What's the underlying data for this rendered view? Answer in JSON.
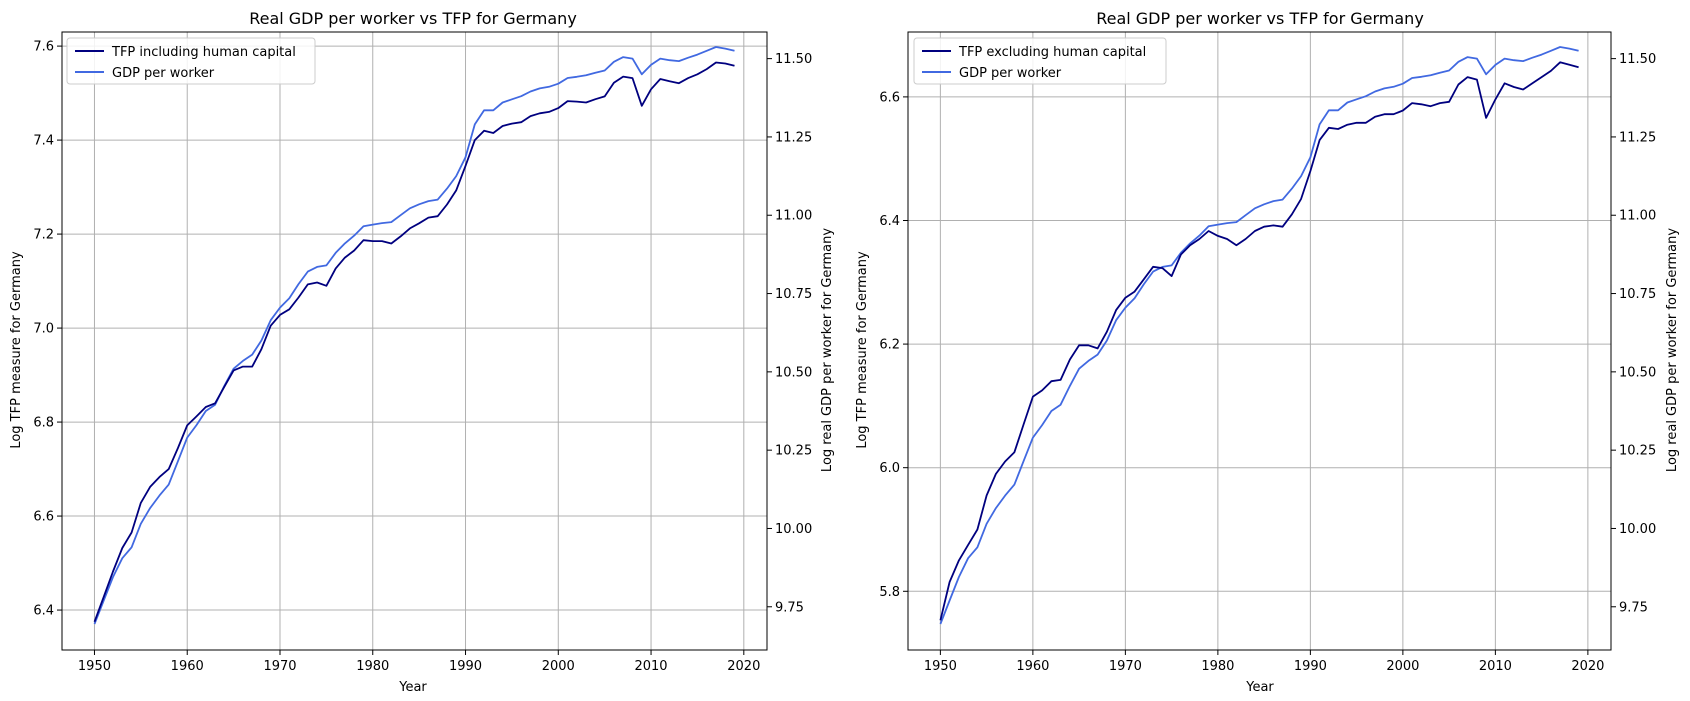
{
  "chart_data": [
    {
      "type": "line",
      "title": "Real GDP per worker vs TFP for Germany",
      "xlabel": "Year",
      "ylabel_left": "Log TFP measure for Germany",
      "ylabel_right": "Log real GDP per worker for Germany",
      "xlim": [
        1946.5,
        2022.5
      ],
      "ylim_left": [
        6.315,
        7.63
      ],
      "ylim_right": [
        9.612,
        11.585
      ],
      "x_ticks": [
        1950,
        1960,
        1970,
        1980,
        1990,
        2000,
        2010,
        2020
      ],
      "y_ticks_left": [
        6.4,
        6.6,
        6.8,
        7.0,
        7.2,
        7.4,
        7.6
      ],
      "y_ticks_right": [
        9.75,
        10.0,
        10.25,
        10.5,
        10.75,
        11.0,
        11.25,
        11.5
      ],
      "y_tick_labels_left": [
        "6.4",
        "6.6",
        "6.8",
        "7.0",
        "7.2",
        "7.4",
        "7.6"
      ],
      "y_tick_labels_right": [
        "9.75",
        "10.00",
        "10.25",
        "10.50",
        "10.75",
        "11.00",
        "11.25",
        "11.50"
      ],
      "grid": true,
      "legend_position": "top-left",
      "x": [
        1950,
        1951,
        1952,
        1953,
        1954,
        1955,
        1956,
        1957,
        1958,
        1959,
        1960,
        1961,
        1962,
        1963,
        1964,
        1965,
        1966,
        1967,
        1968,
        1969,
        1970,
        1971,
        1972,
        1973,
        1974,
        1975,
        1976,
        1977,
        1978,
        1979,
        1980,
        1981,
        1982,
        1983,
        1984,
        1985,
        1986,
        1987,
        1988,
        1989,
        1990,
        1991,
        1992,
        1993,
        1994,
        1995,
        1996,
        1997,
        1998,
        1999,
        2000,
        2001,
        2002,
        2003,
        2004,
        2005,
        2006,
        2007,
        2008,
        2009,
        2010,
        2011,
        2012,
        2013,
        2014,
        2015,
        2016,
        2017,
        2018,
        2019
      ],
      "series": [
        {
          "name": "TFP including human capital",
          "axis": "left",
          "color": "#00007f",
          "values": [
            6.375,
            6.428,
            6.482,
            6.532,
            6.565,
            6.628,
            6.662,
            6.683,
            6.7,
            6.745,
            6.793,
            6.812,
            6.832,
            6.84,
            6.875,
            6.91,
            6.918,
            6.918,
            6.955,
            7.005,
            7.028,
            7.04,
            7.065,
            7.093,
            7.097,
            7.09,
            7.127,
            7.15,
            7.165,
            7.187,
            7.185,
            7.185,
            7.18,
            7.195,
            7.212,
            7.223,
            7.235,
            7.238,
            7.263,
            7.293,
            7.345,
            7.4,
            7.42,
            7.415,
            7.43,
            7.435,
            7.438,
            7.451,
            7.457,
            7.46,
            7.468,
            7.483,
            7.482,
            7.48,
            7.487,
            7.493,
            7.522,
            7.535,
            7.532,
            7.473,
            7.508,
            7.53,
            7.525,
            7.521,
            7.532,
            7.54,
            7.551,
            7.565,
            7.563,
            7.558
          ]
        },
        {
          "name": "GDP per worker",
          "axis": "right",
          "color": "#4169e1",
          "values": [
            9.695,
            9.77,
            9.845,
            9.905,
            9.94,
            10.015,
            10.065,
            10.105,
            10.14,
            10.215,
            10.29,
            10.33,
            10.375,
            10.395,
            10.455,
            10.51,
            10.535,
            10.555,
            10.6,
            10.665,
            10.705,
            10.735,
            10.78,
            10.82,
            10.835,
            10.84,
            10.88,
            10.91,
            10.935,
            10.965,
            10.97,
            10.975,
            10.978,
            11.0,
            11.022,
            11.035,
            11.045,
            11.05,
            11.085,
            11.125,
            11.185,
            11.29,
            11.335,
            11.335,
            11.36,
            11.37,
            11.38,
            11.395,
            11.405,
            11.41,
            11.42,
            11.438,
            11.442,
            11.447,
            11.455,
            11.462,
            11.49,
            11.505,
            11.5,
            11.45,
            11.48,
            11.5,
            11.495,
            11.492,
            11.503,
            11.513,
            11.525,
            11.537,
            11.532,
            11.525
          ]
        }
      ]
    },
    {
      "type": "line",
      "title": "Real GDP per worker vs TFP for Germany",
      "xlabel": "Year",
      "ylabel_left": "Log TFP measure for Germany",
      "ylabel_right": "Log real GDP per worker for Germany",
      "xlim": [
        1946.5,
        2022.5
      ],
      "ylim_left": [
        5.705,
        6.705
      ],
      "ylim_right": [
        9.612,
        11.585
      ],
      "x_ticks": [
        1950,
        1960,
        1970,
        1980,
        1990,
        2000,
        2010,
        2020
      ],
      "y_ticks_left": [
        5.8,
        6.0,
        6.2,
        6.4,
        6.6
      ],
      "y_ticks_right": [
        9.75,
        10.0,
        10.25,
        10.5,
        10.75,
        11.0,
        11.25,
        11.5
      ],
      "y_tick_labels_left": [
        "5.8",
        "6.0",
        "6.2",
        "6.4",
        "6.6"
      ],
      "y_tick_labels_right": [
        "9.75",
        "10.00",
        "10.25",
        "10.50",
        "10.75",
        "11.00",
        "11.25",
        "11.50"
      ],
      "grid": true,
      "legend_position": "top-left",
      "x": [
        1950,
        1951,
        1952,
        1953,
        1954,
        1955,
        1956,
        1957,
        1958,
        1959,
        1960,
        1961,
        1962,
        1963,
        1964,
        1965,
        1966,
        1967,
        1968,
        1969,
        1970,
        1971,
        1972,
        1973,
        1974,
        1975,
        1976,
        1977,
        1978,
        1979,
        1980,
        1981,
        1982,
        1983,
        1984,
        1985,
        1986,
        1987,
        1988,
        1989,
        1990,
        1991,
        1992,
        1993,
        1994,
        1995,
        1996,
        1997,
        1998,
        1999,
        2000,
        2001,
        2002,
        2003,
        2004,
        2005,
        2006,
        2007,
        2008,
        2009,
        2010,
        2011,
        2012,
        2013,
        2014,
        2015,
        2016,
        2017,
        2018,
        2019
      ],
      "series": [
        {
          "name": "TFP excluding human capital",
          "axis": "left",
          "color": "#00007f",
          "values": [
            5.753,
            5.815,
            5.85,
            5.875,
            5.9,
            5.955,
            5.99,
            6.01,
            6.025,
            6.07,
            6.115,
            6.125,
            6.14,
            6.142,
            6.175,
            6.198,
            6.198,
            6.193,
            6.22,
            6.255,
            6.275,
            6.285,
            6.305,
            6.325,
            6.323,
            6.31,
            6.345,
            6.36,
            6.37,
            6.383,
            6.375,
            6.37,
            6.36,
            6.37,
            6.383,
            6.39,
            6.392,
            6.39,
            6.41,
            6.435,
            6.48,
            6.53,
            6.55,
            6.548,
            6.555,
            6.558,
            6.558,
            6.568,
            6.572,
            6.572,
            6.578,
            6.59,
            6.588,
            6.585,
            6.59,
            6.592,
            6.62,
            6.632,
            6.628,
            6.566,
            6.596,
            6.622,
            6.616,
            6.612,
            6.622,
            6.632,
            6.642,
            6.656,
            6.652,
            6.648
          ]
        },
        {
          "name": "GDP per worker",
          "axis": "right",
          "color": "#4169e1",
          "values": [
            9.695,
            9.77,
            9.845,
            9.905,
            9.94,
            10.015,
            10.065,
            10.105,
            10.14,
            10.215,
            10.29,
            10.33,
            10.375,
            10.395,
            10.455,
            10.51,
            10.535,
            10.555,
            10.6,
            10.665,
            10.705,
            10.735,
            10.78,
            10.82,
            10.835,
            10.84,
            10.88,
            10.91,
            10.935,
            10.965,
            10.97,
            10.975,
            10.978,
            11.0,
            11.022,
            11.035,
            11.045,
            11.05,
            11.085,
            11.125,
            11.185,
            11.29,
            11.335,
            11.335,
            11.36,
            11.37,
            11.38,
            11.395,
            11.405,
            11.41,
            11.42,
            11.438,
            11.442,
            11.447,
            11.455,
            11.462,
            11.49,
            11.505,
            11.5,
            11.45,
            11.48,
            11.5,
            11.495,
            11.492,
            11.503,
            11.513,
            11.525,
            11.537,
            11.532,
            11.525
          ]
        }
      ]
    }
  ]
}
